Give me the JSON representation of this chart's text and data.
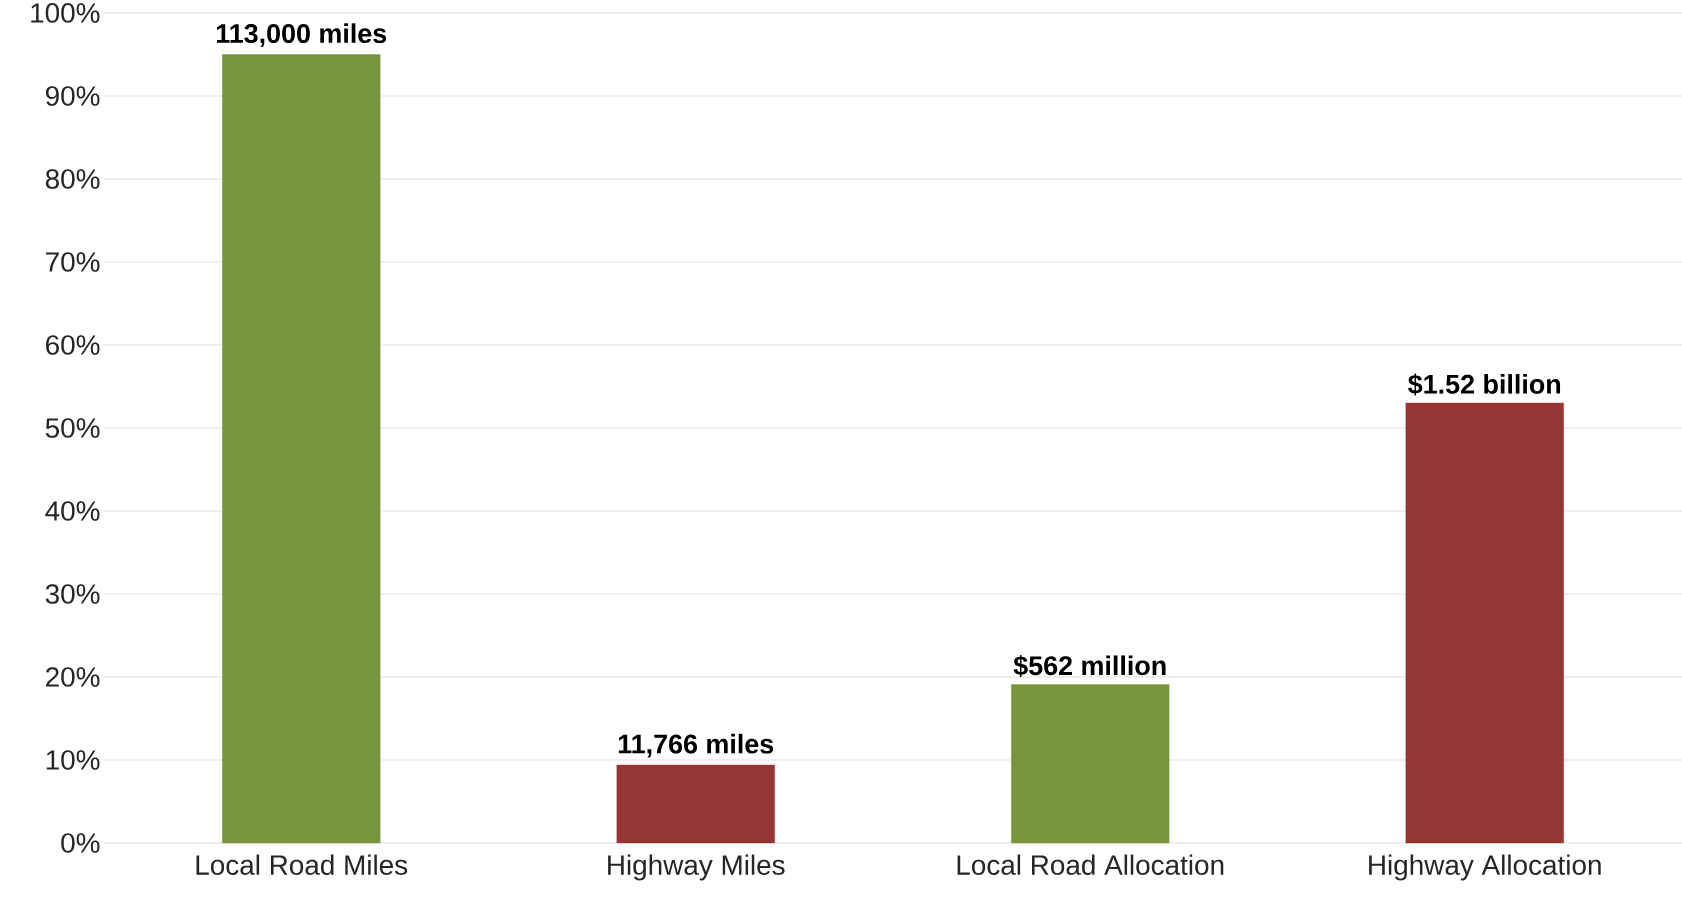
{
  "chart_data": {
    "type": "bar",
    "categories": [
      "Local Road Miles",
      "Highway Miles",
      "Local Road Allocation",
      "Highway Allocation"
    ],
    "values": [
      95,
      9.4,
      19.1,
      53
    ],
    "colors": [
      "#77963b",
      "#963634",
      "#77963b",
      "#963634"
    ],
    "annotations": [
      {
        "text": "113,000 miles",
        "x": "Local Road Miles",
        "y": 95
      },
      {
        "text": "11,766 miles",
        "x": "Highway Miles",
        "y": 9.4
      },
      {
        "text": "$562 million",
        "x": "Local Road Allocation",
        "y": 19.1
      },
      {
        "text": "$1.52 billion",
        "x": "Highway Allocation",
        "y": 53
      }
    ],
    "ylim": [
      0,
      100
    ],
    "yticks": [
      {
        "value": 0,
        "label": "0%"
      },
      {
        "value": 10,
        "label": "10%"
      },
      {
        "value": 20,
        "label": "20%"
      },
      {
        "value": 30,
        "label": "30%"
      },
      {
        "value": 40,
        "label": "40%"
      },
      {
        "value": 50,
        "label": "50%"
      },
      {
        "value": 60,
        "label": "60%"
      },
      {
        "value": 70,
        "label": "70%"
      },
      {
        "value": 80,
        "label": "80%"
      },
      {
        "value": 90,
        "label": "90%"
      },
      {
        "value": 100,
        "label": "100%"
      }
    ],
    "grid": "y"
  }
}
